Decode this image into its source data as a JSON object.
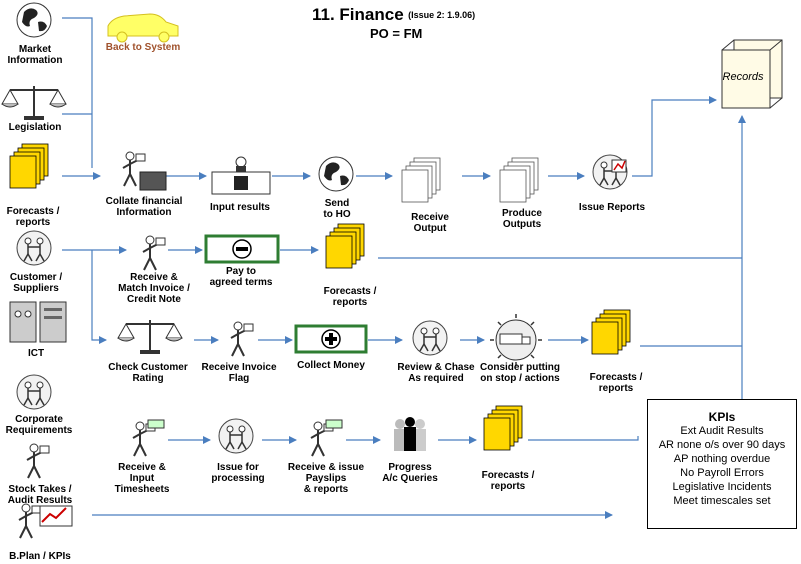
{
  "header": {
    "title": "11. Finance",
    "issue": "(Issue 2: 1.9.06)",
    "subtitle": "PO = FM"
  },
  "back_label": "Back to System",
  "records_label": "Records",
  "inputs": {
    "market": "Market\nInformation",
    "legislation": "Legislation",
    "forecasts": "Forecasts /\nreports",
    "customers": "Customer /\nSuppliers",
    "ict": "ICT",
    "corporate": "Corporate\nRequirements",
    "stock": "Stock Takes /\nAudit Results",
    "bplan": "B.Plan / KPIs"
  },
  "row1": {
    "collate": "Collate financial\nInformation",
    "input_results": "Input results",
    "send": "Send\nto HO",
    "receive_output": "Receive\nOutput",
    "produce_outputs": "Produce\nOutputs",
    "issue_reports": "Issue Reports"
  },
  "row2": {
    "receive_match": "Receive &\nMatch Invoice /\nCredit Note",
    "pay": "Pay to\nagreed terms",
    "forecasts": "Forecasts /\nreports"
  },
  "row3": {
    "check_rating": "Check Customer\nRating",
    "receive_invoice": "Receive Invoice\nFlag",
    "collect_money": "Collect Money",
    "review_chase": "Review & Chase\nAs required",
    "consider_stop": "Consider putting\non stop / actions",
    "forecasts": "Forecasts /\nreports"
  },
  "row4": {
    "receive_timesheets": "Receive &\nInput\nTimesheets",
    "issue_processing": "Issue for\nprocessing",
    "receive_payslips": "Receive & issue\nPayslips\n& reports",
    "progress": "Progress\nA/c Queries",
    "forecasts": "Forecasts /\nreports"
  },
  "kpis": {
    "title": "KPIs",
    "items": [
      "Ext Audit Results",
      "AR none o/s over 90 days",
      "AP nothing overdue",
      "No Payroll Errors",
      "Legislative Incidents",
      "Meet timescales set"
    ]
  },
  "colors": {
    "arrow": "#4a7ebf",
    "doc_yellow": "#ffd700",
    "box_green": "#2e7d32",
    "records": "#fffbe6",
    "back_text": "#a0522d"
  }
}
